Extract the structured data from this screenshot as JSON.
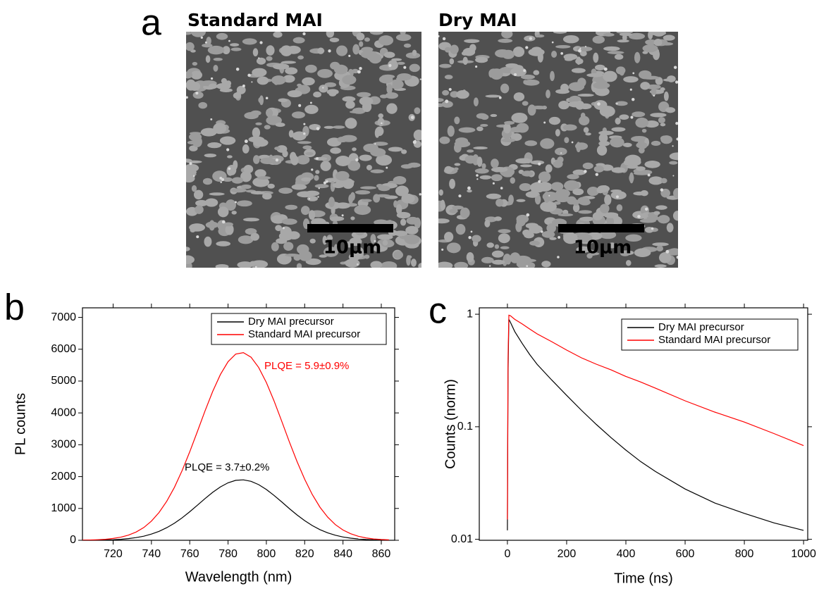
{
  "panel_a": {
    "label": "a",
    "images": [
      {
        "title": "Standard MAI",
        "scale_bar": "10μm"
      },
      {
        "title": "Dry MAI",
        "scale_bar": "10μm"
      }
    ]
  },
  "chart_data": [
    {
      "type": "line",
      "label": "b",
      "x_label": "Wavelength (nm)",
      "y_label": "PL counts",
      "x": [
        704,
        708,
        712,
        716,
        720,
        724,
        728,
        732,
        736,
        740,
        744,
        748,
        752,
        756,
        760,
        764,
        768,
        772,
        776,
        780,
        784,
        788,
        792,
        796,
        800,
        804,
        808,
        812,
        816,
        820,
        824,
        828,
        832,
        836,
        840,
        844,
        848,
        852,
        856,
        860,
        864
      ],
      "series": [
        {
          "name": "Dry MAI precursor",
          "color": "#000000",
          "values": [
            2,
            3,
            6,
            10,
            18,
            32,
            52,
            83,
            129,
            194,
            281,
            395,
            536,
            704,
            895,
            1101,
            1309,
            1506,
            1676,
            1806,
            1882,
            1898,
            1852,
            1748,
            1596,
            1409,
            1205,
            996,
            797,
            617,
            462,
            334,
            234,
            159,
            104,
            66,
            41,
            24,
            14,
            8,
            4
          ]
        },
        {
          "name": "Standard MAI precursor",
          "color": "#ff0000",
          "values": [
            5,
            9,
            18,
            32,
            57,
            98,
            161,
            259,
            401,
            602,
            874,
            1226,
            1664,
            2185,
            2779,
            3418,
            4064,
            4677,
            5206,
            5609,
            5846,
            5894,
            5750,
            5427,
            4955,
            4377,
            3741,
            3093,
            2475,
            1916,
            1435,
            1038,
            728,
            494,
            324,
            206,
            126,
            75,
            43,
            24,
            13
          ]
        }
      ],
      "annotations": [
        {
          "text": "PLQE = 5.9±0.9%",
          "color": "#ff0000"
        },
        {
          "text": "PLQE = 3.7±0.2%",
          "color": "#000000"
        }
      ],
      "xlim": [
        704,
        867
      ],
      "xticks": [
        720,
        740,
        760,
        780,
        800,
        820,
        840,
        860
      ],
      "ylim": [
        0,
        7300
      ],
      "yticks": [
        0,
        1000,
        2000,
        3000,
        4000,
        5000,
        6000,
        7000
      ],
      "legend": "upper right"
    },
    {
      "type": "line",
      "label": "c",
      "x_label": "Time (ns)",
      "y_label": "Counts (norm)",
      "yscale": "log",
      "x": [
        0,
        2,
        5,
        10,
        25,
        50,
        75,
        100,
        150,
        200,
        250,
        300,
        350,
        400,
        450,
        500,
        600,
        700,
        800,
        900,
        1000
      ],
      "series": [
        {
          "name": "Dry MAI precursor",
          "color": "#000000",
          "values": [
            0.012,
            0.3,
            0.9,
            0.85,
            0.7,
            0.55,
            0.44,
            0.36,
            0.26,
            0.19,
            0.14,
            0.105,
            0.08,
            0.062,
            0.049,
            0.04,
            0.028,
            0.021,
            0.017,
            0.014,
            0.012
          ]
        },
        {
          "name": "Standard MAI precursor",
          "color": "#ff0000",
          "values": [
            0.015,
            0.4,
            0.98,
            0.97,
            0.9,
            0.82,
            0.74,
            0.67,
            0.57,
            0.48,
            0.41,
            0.36,
            0.32,
            0.28,
            0.25,
            0.22,
            0.17,
            0.135,
            0.11,
            0.087,
            0.068
          ]
        }
      ],
      "xlim": [
        -95,
        1014
      ],
      "xticks": [
        0,
        200,
        400,
        600,
        800,
        1000
      ],
      "ylim": [
        0.0098,
        1.14
      ],
      "yticks": [
        0.01,
        0.1,
        1
      ],
      "legend": "upper right"
    }
  ]
}
